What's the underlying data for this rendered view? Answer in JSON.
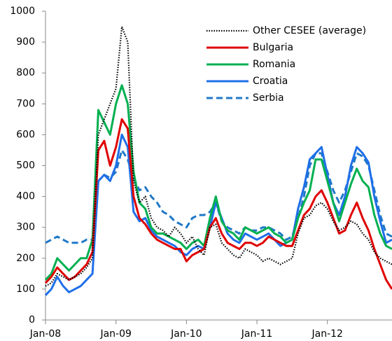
{
  "chart_data": {
    "type": "line",
    "x": [
      "2008-01",
      "2008-02",
      "2008-03",
      "2008-04",
      "2008-05",
      "2008-06",
      "2008-07",
      "2008-08",
      "2008-09",
      "2008-10",
      "2008-11",
      "2008-12",
      "2009-01",
      "2009-02",
      "2009-03",
      "2009-04",
      "2009-05",
      "2009-06",
      "2009-07",
      "2009-08",
      "2009-09",
      "2009-10",
      "2009-11",
      "2009-12",
      "2010-01",
      "2010-02",
      "2010-03",
      "2010-04",
      "2010-05",
      "2010-06",
      "2010-07",
      "2010-08",
      "2010-09",
      "2010-10",
      "2010-11",
      "2010-12",
      "2011-01",
      "2011-02",
      "2011-03",
      "2011-04",
      "2011-05",
      "2011-06",
      "2011-07",
      "2011-08",
      "2011-09",
      "2011-10",
      "2011-11",
      "2011-12",
      "2012-01",
      "2012-02",
      "2012-03",
      "2012-04",
      "2012-05",
      "2012-06",
      "2012-07",
      "2012-08",
      "2012-09",
      "2012-10",
      "2012-11",
      "2012-12"
    ],
    "xlim": [
      "2008-01",
      "2012-12"
    ],
    "xticks": [
      {
        "value": "2008-01",
        "label": "Jan-08"
      },
      {
        "value": "2009-01",
        "label": "Jan-09"
      },
      {
        "value": "2010-01",
        "label": "Jan-10"
      },
      {
        "value": "2011-01",
        "label": "Jan-11"
      },
      {
        "value": "2012-01",
        "label": "Jan-12"
      }
    ],
    "ylim": [
      0,
      1000
    ],
    "yticks": [
      0,
      100,
      200,
      300,
      400,
      500,
      600,
      700,
      800,
      900,
      1000
    ],
    "legend": "upper right",
    "series": [
      {
        "name": "Other CESEE (average)",
        "color": "#000000",
        "dash": "dotted",
        "values": [
          110,
          120,
          150,
          140,
          130,
          140,
          150,
          170,
          200,
          600,
          650,
          700,
          750,
          950,
          900,
          450,
          380,
          400,
          330,
          300,
          290,
          270,
          300,
          280,
          250,
          270,
          230,
          210,
          300,
          310,
          250,
          230,
          210,
          200,
          230,
          220,
          210,
          190,
          200,
          190,
          180,
          190,
          200,
          280,
          330,
          340,
          370,
          380,
          360,
          320,
          290,
          300,
          320,
          310,
          280,
          260,
          220,
          200,
          190,
          180
        ]
      },
      {
        "name": "Bulgaria",
        "color": "#e00000",
        "dash": "solid",
        "values": [
          120,
          140,
          170,
          150,
          130,
          140,
          160,
          180,
          220,
          550,
          580,
          500,
          560,
          650,
          620,
          400,
          330,
          310,
          280,
          260,
          250,
          240,
          230,
          230,
          190,
          210,
          220,
          230,
          300,
          330,
          280,
          250,
          240,
          230,
          250,
          250,
          240,
          250,
          270,
          260,
          250,
          240,
          240,
          290,
          340,
          360,
          400,
          420,
          380,
          330,
          280,
          290,
          340,
          380,
          330,
          290,
          230,
          180,
          130,
          100
        ]
      },
      {
        "name": "Romania",
        "color": "#00b050",
        "dash": "solid",
        "values": [
          130,
          150,
          200,
          180,
          160,
          180,
          200,
          200,
          260,
          680,
          640,
          600,
          700,
          760,
          700,
          480,
          380,
          360,
          300,
          280,
          280,
          270,
          260,
          250,
          230,
          250,
          260,
          240,
          330,
          400,
          320,
          290,
          280,
          260,
          300,
          290,
          280,
          290,
          300,
          280,
          270,
          250,
          260,
          330,
          380,
          420,
          520,
          520,
          450,
          380,
          320,
          380,
          440,
          490,
          450,
          430,
          340,
          280,
          240,
          230
        ]
      },
      {
        "name": "Croatia",
        "color": "#1f6fe8",
        "dash": "solid",
        "values": [
          80,
          100,
          140,
          110,
          90,
          100,
          110,
          130,
          150,
          450,
          470,
          450,
          500,
          600,
          560,
          350,
          320,
          330,
          290,
          270,
          260,
          250,
          240,
          220,
          210,
          230,
          240,
          230,
          300,
          380,
          330,
          280,
          260,
          250,
          280,
          270,
          260,
          270,
          280,
          260,
          240,
          250,
          260,
          360,
          430,
          520,
          540,
          560,
          470,
          380,
          340,
          400,
          500,
          560,
          540,
          510,
          400,
          320,
          250,
          260
        ]
      },
      {
        "name": "Serbia",
        "color": "#1f78c8",
        "dash": "dashed",
        "values": [
          250,
          260,
          270,
          260,
          250,
          250,
          250,
          260,
          260,
          450,
          470,
          460,
          480,
          550,
          520,
          460,
          420,
          430,
          400,
          380,
          350,
          340,
          320,
          310,
          300,
          330,
          340,
          340,
          350,
          380,
          320,
          300,
          290,
          280,
          300,
          290,
          290,
          300,
          300,
          290,
          280,
          260,
          270,
          330,
          400,
          500,
          540,
          540,
          480,
          420,
          380,
          420,
          480,
          540,
          530,
          500,
          420,
          340,
          280,
          270
        ]
      }
    ]
  }
}
